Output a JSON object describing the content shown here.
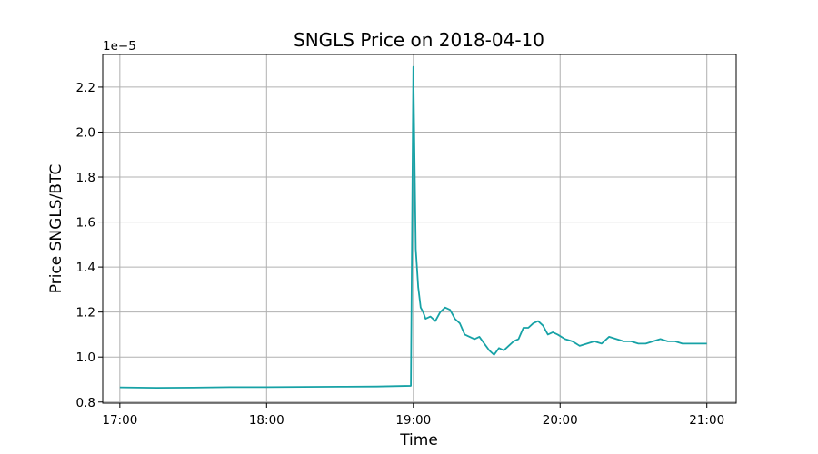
{
  "chart_data": {
    "type": "line",
    "title": "SNGLS Price on 2018-04-10",
    "xlabel": "Time",
    "ylabel": "Price SNGLS/BTC",
    "y_offset_label": "1e−5",
    "xlim": [
      "16:53",
      "21:12"
    ],
    "ylim": [
      0.795,
      2.345
    ],
    "x_ticks": [
      "17:00",
      "18:00",
      "19:00",
      "20:00",
      "21:00"
    ],
    "y_ticks": [
      "0.8",
      "1.0",
      "1.2",
      "1.4",
      "1.6",
      "1.8",
      "2.0",
      "2.2"
    ],
    "grid": true,
    "line_color": "#17a2a6",
    "series": [
      {
        "x": [
          "17:00",
          "17:15",
          "17:30",
          "17:45",
          "18:00",
          "18:15",
          "18:30",
          "18:45",
          "18:59",
          "19:00",
          "19:01",
          "19:02",
          "19:03",
          "19:04",
          "19:05",
          "19:07",
          "19:09",
          "19:11",
          "19:13",
          "19:15",
          "19:17",
          "19:19",
          "19:21",
          "19:23",
          "19:25",
          "19:27",
          "19:29",
          "19:31",
          "19:33",
          "19:35",
          "19:37",
          "19:39",
          "19:41",
          "19:43",
          "19:45",
          "19:47",
          "19:49",
          "19:51",
          "19:53",
          "19:55",
          "19:57",
          "19:59",
          "20:02",
          "20:05",
          "20:08",
          "20:11",
          "20:14",
          "20:17",
          "20:20",
          "20:23",
          "20:26",
          "20:29",
          "20:32",
          "20:35",
          "20:38",
          "20:41",
          "20:44",
          "20:47",
          "20:50",
          "20:53",
          "20:56",
          "20:59",
          "21:00"
        ],
        "y": [
          0.865,
          0.863,
          0.864,
          0.866,
          0.866,
          0.867,
          0.868,
          0.869,
          0.872,
          2.29,
          1.48,
          1.31,
          1.22,
          1.2,
          1.17,
          1.18,
          1.16,
          1.2,
          1.22,
          1.21,
          1.17,
          1.15,
          1.1,
          1.09,
          1.08,
          1.09,
          1.06,
          1.03,
          1.01,
          1.04,
          1.03,
          1.05,
          1.07,
          1.08,
          1.13,
          1.13,
          1.15,
          1.16,
          1.14,
          1.1,
          1.11,
          1.1,
          1.08,
          1.07,
          1.05,
          1.06,
          1.07,
          1.06,
          1.09,
          1.08,
          1.07,
          1.07,
          1.06,
          1.06,
          1.07,
          1.08,
          1.07,
          1.07,
          1.06,
          1.06,
          1.06,
          1.06,
          1.06
        ]
      }
    ]
  }
}
